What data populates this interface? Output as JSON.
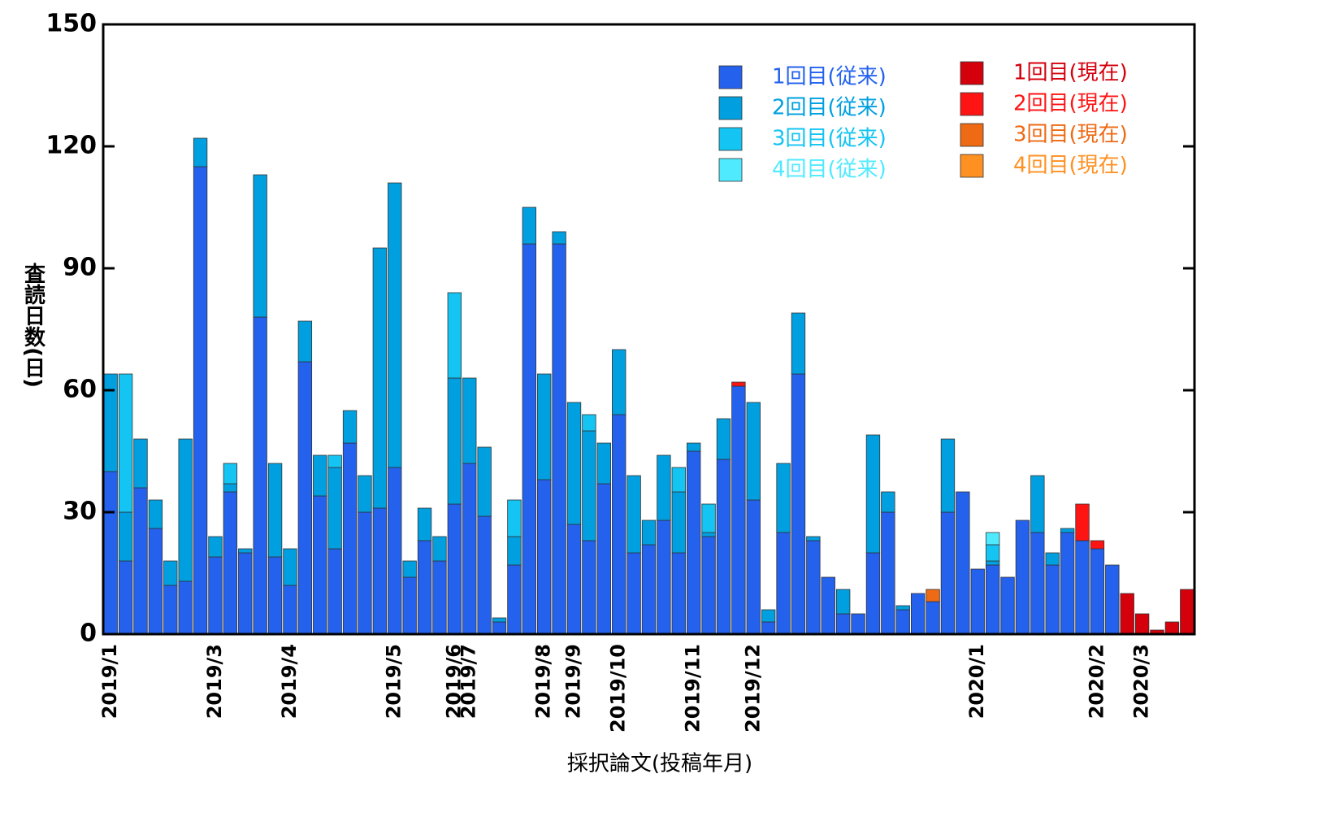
{
  "chart_data": {
    "type": "stacked_bar",
    "x_label": "採択論文(投稿年月)",
    "y_label": "査読日数(日)",
    "categories": [
      "2019/1",
      null,
      null,
      null,
      null,
      null,
      null,
      "2019/3",
      null,
      null,
      null,
      null,
      "2019/4",
      null,
      null,
      null,
      null,
      null,
      null,
      "2019/5",
      null,
      null,
      null,
      "2019/6",
      "2019/7",
      null,
      null,
      null,
      null,
      "2019/8",
      null,
      "2019/9",
      null,
      null,
      "2019/10",
      null,
      null,
      null,
      null,
      "2019/11",
      null,
      null,
      null,
      "2019/12",
      null,
      null,
      null,
      null,
      null,
      null,
      null,
      null,
      null,
      null,
      null,
      null,
      null,
      null,
      "2020/1",
      null,
      null,
      null,
      null,
      null,
      null,
      null,
      "2020/2",
      null,
      null,
      "2020/3",
      null,
      null,
      null
    ],
    "series": [
      {
        "name": "1回目(従来)",
        "color": "#2462ee",
        "values": [
          40,
          18,
          36,
          26,
          12,
          13,
          115,
          19,
          35,
          20,
          78,
          19,
          12,
          67,
          34,
          21,
          47,
          30,
          31,
          41,
          14,
          23,
          18,
          32,
          42,
          29,
          3,
          17,
          96,
          38,
          96,
          27,
          23,
          37,
          54,
          20,
          22,
          28,
          20,
          45,
          24,
          43,
          61,
          33,
          3,
          25,
          64,
          23,
          14,
          5,
          5,
          20,
          30,
          6,
          10,
          8,
          30,
          35,
          16,
          17,
          14,
          28,
          25,
          17,
          25,
          23,
          21,
          17,
          null,
          null,
          null,
          null,
          null
        ]
      },
      {
        "name": "2回目(従来)",
        "color": "#00a0e0",
        "values": [
          24,
          12,
          12,
          7,
          6,
          35,
          7,
          5,
          2,
          1,
          35,
          23,
          9,
          10,
          10,
          20,
          8,
          9,
          64,
          70,
          4,
          8,
          6,
          31,
          21,
          17,
          1,
          7,
          9,
          26,
          3,
          30,
          27,
          10,
          16,
          19,
          6,
          16,
          15,
          2,
          1,
          10,
          null,
          24,
          3,
          17,
          15,
          1,
          null,
          6,
          null,
          29,
          5,
          1,
          null,
          null,
          18,
          null,
          null,
          1,
          null,
          null,
          14,
          3,
          1,
          null,
          null,
          null,
          null,
          null,
          null,
          null,
          null
        ]
      },
      {
        "name": "3回目(従来)",
        "color": "#14c4f2",
        "values": [
          null,
          34,
          null,
          null,
          null,
          null,
          null,
          null,
          5,
          null,
          null,
          null,
          null,
          null,
          null,
          3,
          null,
          null,
          null,
          null,
          null,
          null,
          null,
          21,
          null,
          null,
          null,
          9,
          null,
          null,
          null,
          null,
          4,
          null,
          null,
          null,
          null,
          null,
          6,
          null,
          7,
          null,
          null,
          null,
          null,
          null,
          null,
          null,
          null,
          null,
          null,
          null,
          null,
          null,
          null,
          null,
          null,
          null,
          null,
          4,
          null,
          null,
          null,
          null,
          null,
          null,
          null,
          null,
          null,
          null,
          null,
          null,
          null
        ]
      },
      {
        "name": "4回目(従来)",
        "color": "#50eaff",
        "values": [
          null,
          null,
          null,
          null,
          null,
          null,
          null,
          null,
          null,
          null,
          null,
          null,
          null,
          null,
          null,
          null,
          null,
          null,
          null,
          null,
          null,
          null,
          null,
          null,
          null,
          null,
          null,
          null,
          null,
          null,
          null,
          null,
          null,
          null,
          null,
          null,
          null,
          null,
          null,
          null,
          null,
          null,
          null,
          null,
          null,
          null,
          null,
          null,
          null,
          null,
          null,
          null,
          null,
          null,
          null,
          null,
          null,
          null,
          null,
          3,
          null,
          null,
          null,
          null,
          null,
          null,
          null,
          null,
          null,
          null,
          null,
          null,
          null
        ]
      },
      {
        "name": "1回目(現在)",
        "color": "#d4000c",
        "values": [
          null,
          null,
          null,
          null,
          null,
          null,
          null,
          null,
          null,
          null,
          null,
          null,
          null,
          null,
          null,
          null,
          null,
          null,
          null,
          null,
          null,
          null,
          null,
          null,
          null,
          null,
          null,
          null,
          null,
          null,
          null,
          null,
          null,
          null,
          null,
          null,
          null,
          null,
          null,
          null,
          null,
          null,
          null,
          null,
          null,
          null,
          null,
          null,
          null,
          null,
          null,
          null,
          null,
          null,
          null,
          null,
          null,
          null,
          null,
          null,
          null,
          null,
          null,
          null,
          null,
          null,
          null,
          null,
          10,
          5,
          1,
          3,
          11
        ]
      },
      {
        "name": "2回目(現在)",
        "color": "#ff1414",
        "values": [
          null,
          null,
          null,
          null,
          null,
          null,
          null,
          null,
          null,
          null,
          null,
          null,
          null,
          null,
          null,
          null,
          null,
          null,
          null,
          null,
          null,
          null,
          null,
          null,
          null,
          null,
          null,
          null,
          null,
          null,
          null,
          null,
          null,
          null,
          null,
          null,
          null,
          null,
          null,
          null,
          null,
          null,
          1,
          null,
          null,
          null,
          null,
          null,
          null,
          null,
          null,
          null,
          null,
          null,
          null,
          null,
          null,
          null,
          null,
          null,
          null,
          null,
          null,
          null,
          null,
          9,
          2,
          null,
          null,
          null,
          null,
          null,
          null
        ]
      },
      {
        "name": "3回目(現在)",
        "color": "#ee6a14",
        "values": [
          null,
          null,
          null,
          null,
          null,
          null,
          null,
          null,
          null,
          null,
          null,
          null,
          null,
          null,
          null,
          null,
          null,
          null,
          null,
          null,
          null,
          null,
          null,
          null,
          null,
          null,
          null,
          null,
          null,
          null,
          null,
          null,
          null,
          null,
          null,
          null,
          null,
          null,
          null,
          null,
          null,
          null,
          null,
          null,
          null,
          null,
          null,
          null,
          null,
          null,
          null,
          null,
          null,
          null,
          null,
          3,
          null,
          null,
          null,
          null,
          null,
          null,
          null,
          null,
          null,
          null,
          null,
          null,
          null,
          null,
          null,
          null,
          null
        ]
      },
      {
        "name": "4回目(現在)",
        "color": "#ff9022",
        "values": [
          null,
          null,
          null,
          null,
          null,
          null,
          null,
          null,
          null,
          null,
          null,
          null,
          null,
          null,
          null,
          null,
          null,
          null,
          null,
          null,
          null,
          null,
          null,
          null,
          null,
          null,
          null,
          null,
          null,
          null,
          null,
          null,
          null,
          null,
          null,
          null,
          null,
          null,
          null,
          null,
          null,
          null,
          null,
          null,
          null,
          null,
          null,
          null,
          null,
          null,
          null,
          null,
          null,
          null,
          null,
          null,
          null,
          null,
          null,
          null,
          null,
          null,
          null,
          null,
          null,
          null,
          null,
          null,
          null,
          null,
          null,
          null,
          null
        ]
      }
    ],
    "ylim": [
      0,
      150
    ],
    "yticks": [
      0,
      30,
      60,
      90,
      120,
      150
    ],
    "grid": false,
    "legend": "upper right"
  }
}
